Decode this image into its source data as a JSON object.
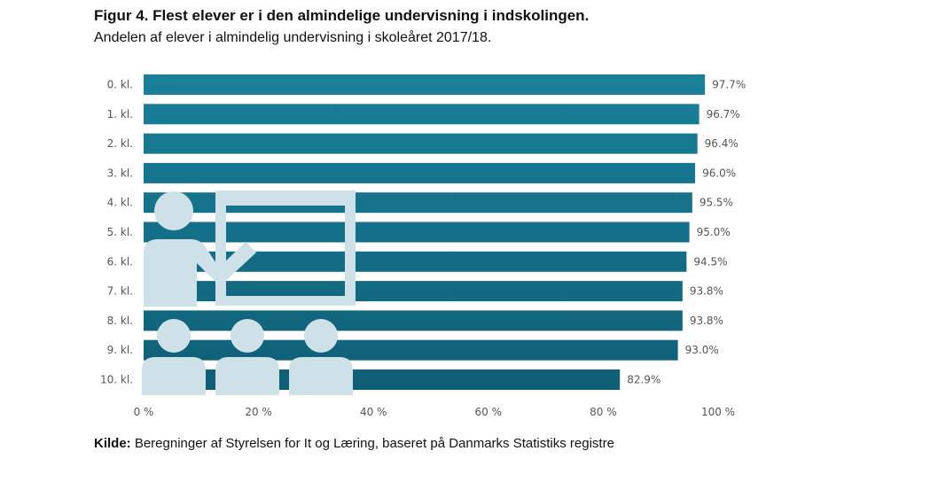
{
  "title": "Figur 4. Flest elever er i den almindelige undervisning i indskolingen.",
  "subtitle": "Andelen af elever i almindelig undervisning i skoleåret 2017/18.",
  "source": {
    "label": "Kilde:",
    "text": " Beregninger af Styrelsen for It og Læring, baseret på Danmarks Statistiks registre"
  },
  "colors": {
    "bar_top": "#1a809a",
    "bar_bottom": "#0e5e75",
    "pictogram": "#cfe1e8"
  },
  "chart_data": {
    "type": "bar",
    "orientation": "horizontal",
    "categories": [
      "0. kl.",
      "1. kl.",
      "2. kl.",
      "3. kl.",
      "4. kl.",
      "5. kl.",
      "6. kl.",
      "7. kl.",
      "8. kl.",
      "9. kl.",
      "10. kl."
    ],
    "values": [
      97.7,
      96.7,
      96.4,
      96.0,
      95.5,
      95.0,
      94.5,
      93.8,
      93.8,
      93.0,
      82.9
    ],
    "data_labels": [
      "97.7%",
      "96.7%",
      "96.4%",
      "96.0%",
      "95.5%",
      "95.0%",
      "94.5%",
      "93.8%",
      "93.8%",
      "93.0%",
      "82.9%"
    ],
    "x_ticks": [
      0,
      20,
      40,
      60,
      80,
      100
    ],
    "x_tick_labels": [
      "0 %",
      "20 %",
      "40 %",
      "60 %",
      "80 %",
      "100 %"
    ],
    "xlim": [
      0,
      100
    ],
    "grid": false,
    "legend": "none"
  }
}
